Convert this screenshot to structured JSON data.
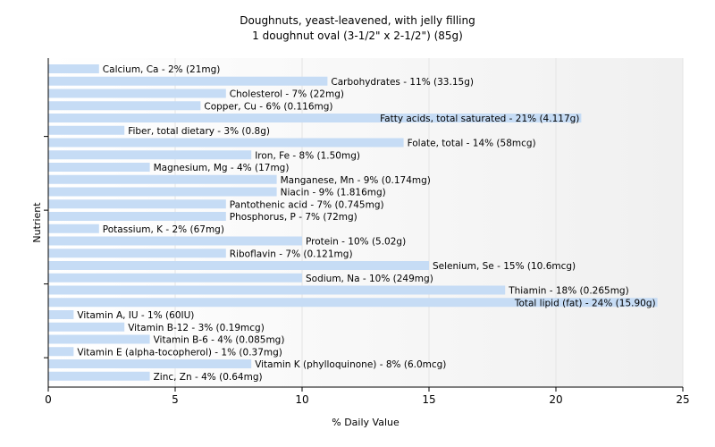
{
  "chart_data": {
    "type": "bar",
    "orientation": "horizontal",
    "title": "Doughnuts, yeast-leavened, with jelly filling",
    "subtitle": "1 doughnut oval (3-1/2\" x 2-1/2\") (85g)",
    "xlabel": "% Daily Value",
    "ylabel": "Nutrient",
    "xlim": [
      0,
      25
    ],
    "xticks": [
      0,
      5,
      10,
      15,
      20,
      25
    ],
    "grid": true,
    "bar_color": "#c6dcf5",
    "categories": [
      "Calcium, Ca",
      "Carbohydrates",
      "Cholesterol",
      "Copper, Cu",
      "Fatty acids, total saturated",
      "Fiber, total dietary",
      "Folate, total",
      "Iron, Fe",
      "Magnesium, Mg",
      "Manganese, Mn",
      "Niacin",
      "Pantothenic acid",
      "Phosphorus, P",
      "Potassium, K",
      "Protein",
      "Riboflavin",
      "Selenium, Se",
      "Sodium, Na",
      "Thiamin",
      "Total lipid (fat)",
      "Vitamin A, IU",
      "Vitamin B-12",
      "Vitamin B-6",
      "Vitamin E (alpha-tocopherol)",
      "Vitamin K (phylloquinone)",
      "Zinc, Zn"
    ],
    "values": [
      2,
      11,
      7,
      6,
      21,
      3,
      14,
      8,
      4,
      9,
      9,
      7,
      7,
      2,
      10,
      7,
      15,
      10,
      18,
      24,
      1,
      3,
      4,
      1,
      8,
      4
    ],
    "labels": [
      "Calcium, Ca - 2% (21mg)",
      "Carbohydrates - 11% (33.15g)",
      "Cholesterol - 7% (22mg)",
      "Copper, Cu - 6% (0.116mg)",
      "Fatty acids, total saturated - 21% (4.117g)",
      "Fiber, total dietary - 3% (0.8g)",
      "Folate, total - 14% (58mcg)",
      "Iron, Fe - 8% (1.50mg)",
      "Magnesium, Mg - 4% (17mg)",
      "Manganese, Mn - 9% (0.174mg)",
      "Niacin - 9% (1.816mg)",
      "Pantothenic acid - 7% (0.745mg)",
      "Phosphorus, P - 7% (72mg)",
      "Potassium, K - 2% (67mg)",
      "Protein - 10% (5.02g)",
      "Riboflavin - 7% (0.121mg)",
      "Selenium, Se - 15% (10.6mcg)",
      "Sodium, Na - 10% (249mg)",
      "Thiamin - 18% (0.265mg)",
      "Total lipid (fat) - 24% (15.90g)",
      "Vitamin A, IU - 1% (60IU)",
      "Vitamin B-12 - 3% (0.19mcg)",
      "Vitamin B-6 - 4% (0.085mg)",
      "Vitamin E (alpha-tocopherol) - 1% (0.37mg)",
      "Vitamin K (phylloquinone) - 8% (6.0mcg)",
      "Zinc, Zn - 4% (0.64mg)"
    ]
  }
}
